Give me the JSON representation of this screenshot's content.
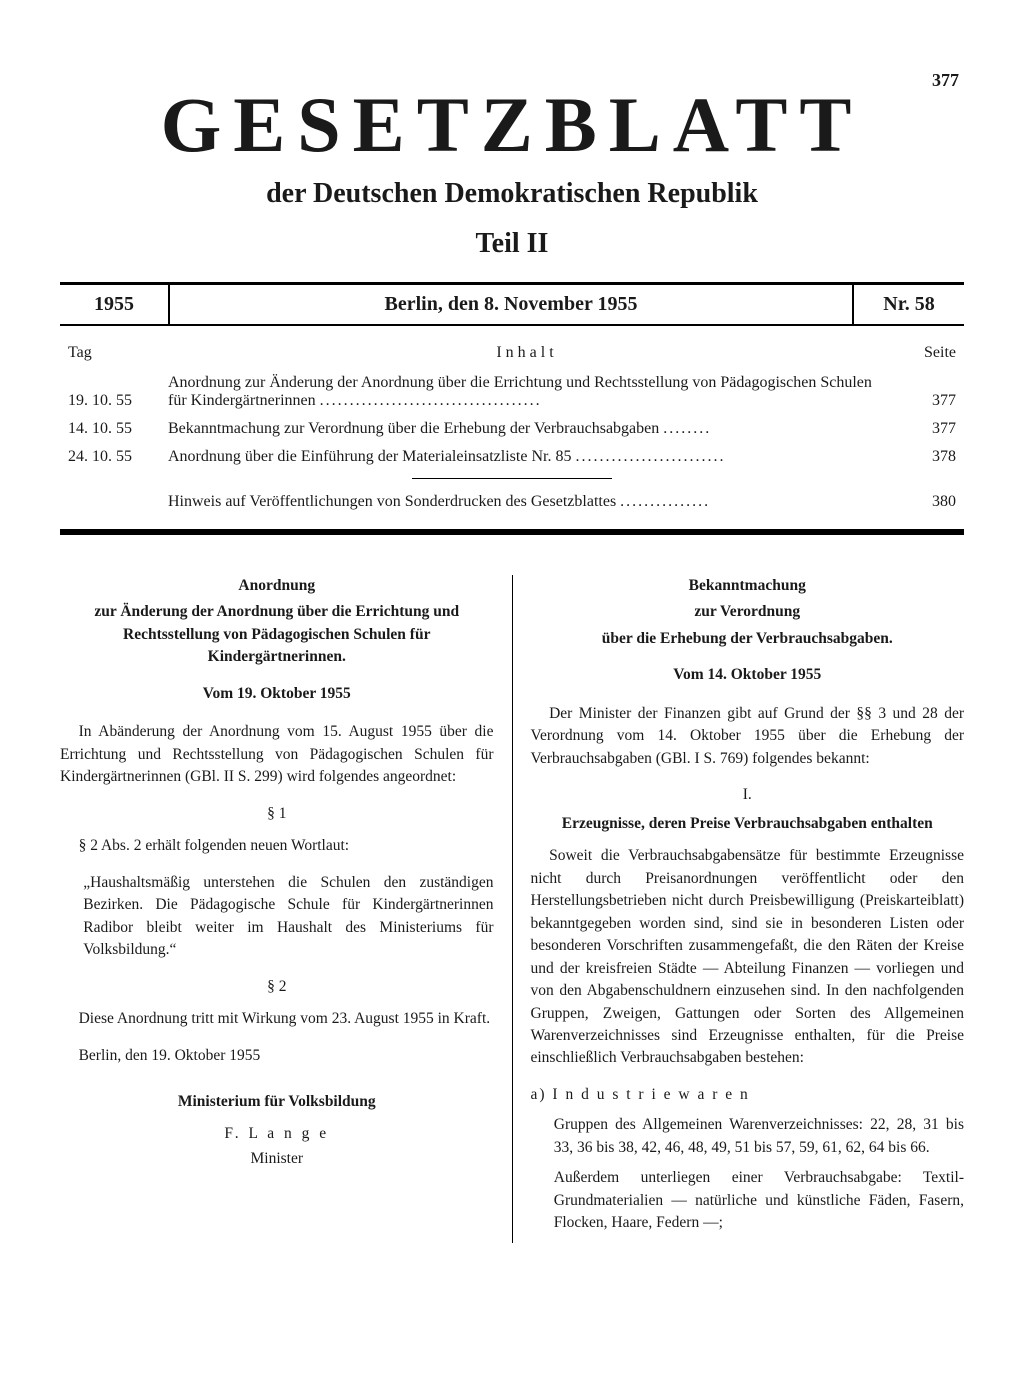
{
  "pageNumberTop": "377",
  "mainTitle": "GESETZBLATT",
  "subtitle": "der Deutschen Demokratischen Republik",
  "part": "Teil II",
  "header": {
    "year": "1955",
    "date": "Berlin, den 8. November 1955",
    "nr": "Nr. 58"
  },
  "toc": {
    "headers": {
      "date": "Tag",
      "title": "Inhalt",
      "page": "Seite"
    },
    "rows": [
      {
        "date": "19. 10. 55",
        "title": "Anordnung zur Änderung der Anordnung über die Errichtung und Rechtsstellung von Pädagogischen Schulen für Kindergärtnerinnen",
        "dots": ".....................................",
        "page": "377"
      },
      {
        "date": "14. 10. 55",
        "title": "Bekanntmachung zur Verordnung über die Erhebung der Verbrauchsabgaben",
        "dots": "........",
        "page": "377"
      },
      {
        "date": "24. 10. 55",
        "title": "Anordnung über die Einführung der Materialeinsatzliste Nr. 85",
        "dots": ".........................",
        "page": "378"
      }
    ],
    "extra": {
      "title": "Hinweis auf Veröffentlichungen von Sonderdrucken des Gesetzblattes",
      "dots": "...............",
      "page": "380"
    }
  },
  "left": {
    "title1": "Anordnung",
    "title2": "zur Änderung der Anordnung über die Errichtung und Rechtsstellung von Pädagogischen Schulen für Kindergärtnerinnen.",
    "date": "Vom 19. Oktober 1955",
    "intro": "In Abänderung der Anordnung vom 15. August 1955 über die Errichtung und Rechtsstellung von Pädagogischen Schulen für Kindergärtnerinnen (GBl. II S. 299) wird folgendes angeordnet:",
    "s1": "§ 1",
    "s1text": "§ 2 Abs. 2 erhält folgenden neuen Wortlaut:",
    "s1quote": "„Haushaltsmäßig unterstehen die Schulen den zuständigen Bezirken. Die Pädagogische Schule für Kindergärtnerinnen Radibor bleibt weiter im Haushalt des Ministeriums für Volksbildung.“",
    "s2": "§ 2",
    "s2text": "Diese Anordnung tritt mit Wirkung vom 23. August 1955 in Kraft.",
    "placedate": "Berlin, den 19. Oktober 1955",
    "ministry": "Ministerium für Volksbildung",
    "signName": "F. L a n g e",
    "signTitle": "Minister"
  },
  "right": {
    "title1": "Bekanntmachung",
    "title2": "zur Verordnung",
    "title3": "über die Erhebung der Verbrauchsabgaben.",
    "date": "Vom 14. Oktober 1955",
    "intro": "Der Minister der Finanzen gibt auf Grund der §§ 3 und 28 der Verordnung vom 14. Oktober 1955 über die Erhebung der Verbrauchsabgaben (GBl. I S. 769) folgendes bekannt:",
    "roman": "I.",
    "subheading": "Erzeugnisse, deren Preise Verbrauchsabgaben enthalten",
    "body": "Soweit die Verbrauchsabgabensätze für bestimmte Erzeugnisse nicht durch Preisanordnungen veröffentlicht oder den Herstellungsbetrieben nicht durch Preisbewilligung (Preiskarteiblatt) bekanntgegeben worden sind, sind sie in besonderen Listen oder besonderen Vorschriften zusammengefaßt, die den Räten der Kreise und der kreisfreien Städte — Abteilung Finanzen — vorliegen und von den Abgabenschuldnern einzusehen sind. In den nachfolgenden Gruppen, Zweigen, Gattungen oder Sorten des Allgemeinen Warenverzeichnisses sind Erzeugnisse enthalten, für die Preise einschließlich Verbrauchsabgaben bestehen:",
    "listA": "a) I n d u s t r i e w a r e n",
    "listA1": "Gruppen des Allgemeinen Warenverzeichnisses: 22, 28, 31 bis 33, 36 bis 38, 42, 46, 48, 49, 51 bis 57, 59, 61, 62, 64 bis 66.",
    "listA2": "Außerdem unterliegen einer Verbrauchsabgabe: Textil-Grundmaterialien — natürliche und künstliche Fäden, Fasern, Flocken, Haare, Federn —;"
  }
}
